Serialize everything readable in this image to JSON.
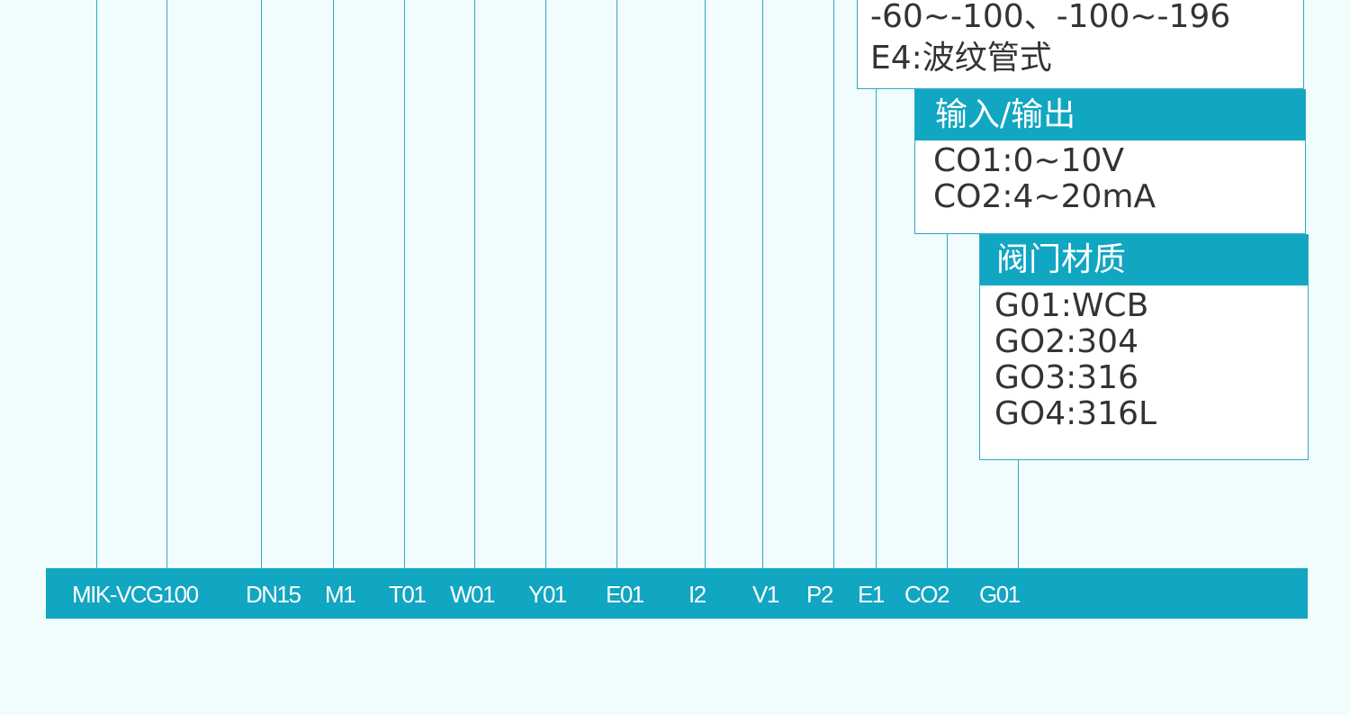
{
  "top_box": {
    "lines": [
      "-60~-100、-100~-196",
      "E4:波纹管式"
    ]
  },
  "io_box": {
    "title": "输入/输出",
    "lines": [
      "CO1:0~10V",
      "CO2:4~20mA"
    ]
  },
  "material_box": {
    "title": "阀门材质",
    "lines": [
      "G01:WCB",
      "GO2:304",
      "GO3:316",
      "GO4:316L"
    ]
  },
  "model_code": {
    "segments": [
      "MIK-VCG100",
      "DN15",
      "M1",
      "T01",
      "W01",
      "Y01",
      "E01",
      "I2",
      "V1",
      "P2",
      "E1",
      "CO2",
      "G01"
    ]
  },
  "colors": {
    "background": "#f1fcfd",
    "accent": "#11a6c2",
    "line": "#2aaac3",
    "text": "#333333"
  }
}
